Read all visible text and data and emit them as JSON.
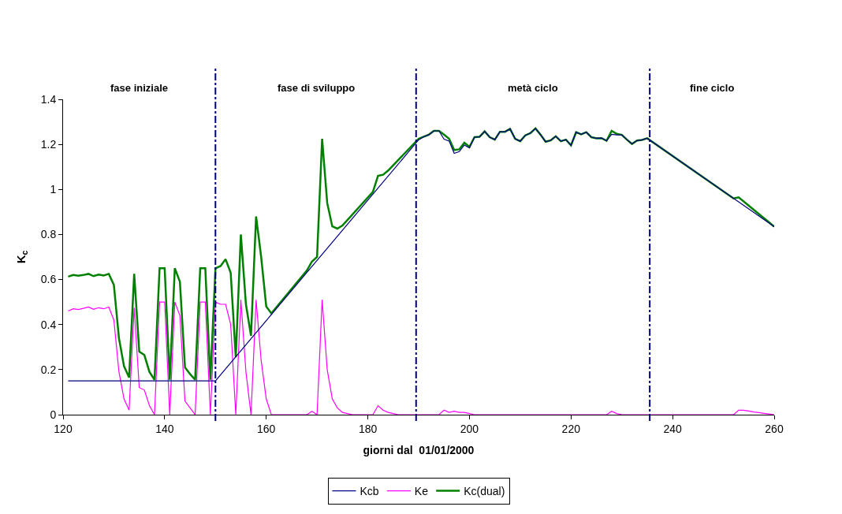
{
  "chart_data": {
    "type": "line",
    "xlabel": "giorni dal  01/01/2000",
    "ylabel": "K$_{c}$",
    "xlim": [
      120,
      260
    ],
    "xticks": [
      120,
      140,
      160,
      180,
      200,
      220,
      240,
      260
    ],
    "ylim": [
      0,
      1.4
    ],
    "yticks": [
      0,
      0.2,
      0.4,
      0.6,
      0.8,
      1,
      1.2,
      1.4
    ],
    "legend": "bottom",
    "marker": "none",
    "line_style": "solid",
    "annotations": [
      "fase iniziale",
      "fase di sviluppo",
      "metà ciclo",
      "fine ciclo"
    ],
    "ref_lines": [
      {
        "axis": "x",
        "value": 150,
        "color": "#000080",
        "line_style": "dashdot"
      },
      {
        "axis": "x",
        "value": 189.5,
        "color": "#000080",
        "line_style": "dashdot"
      },
      {
        "axis": "x",
        "value": 235.5,
        "color": "#000080",
        "line_style": "dashdot"
      }
    ],
    "series": [
      {
        "name": "Kcb",
        "color": "#000080",
        "x": [
          121,
          150,
          190,
          191,
          192,
          193,
          194,
          195,
          196,
          197,
          198,
          199,
          200,
          201,
          202,
          203,
          204,
          205,
          206,
          207,
          208,
          209,
          210,
          211,
          212,
          213,
          214,
          215,
          216,
          217,
          218,
          219,
          220,
          221,
          222,
          223,
          224,
          225,
          226,
          227,
          228,
          229,
          230,
          231,
          232,
          233,
          234,
          235,
          260
        ],
        "values": [
          0.15,
          0.15,
          1.22,
          1.234,
          1.243,
          1.26,
          1.26,
          1.223,
          1.215,
          1.16,
          1.168,
          1.197,
          1.184,
          1.232,
          1.234,
          1.258,
          1.232,
          1.221,
          1.256,
          1.256,
          1.269,
          1.225,
          1.214,
          1.24,
          1.25,
          1.271,
          1.243,
          1.212,
          1.218,
          1.236,
          1.214,
          1.221,
          1.196,
          1.254,
          1.245,
          1.254,
          1.232,
          1.227,
          1.228,
          1.216,
          1.245,
          1.242,
          1.242,
          1.221,
          1.202,
          1.217,
          1.22,
          1.227,
          0.835
        ]
      },
      {
        "name": "Ke",
        "color": "#ff00ff",
        "x": [
          121,
          122,
          123,
          124,
          125,
          126,
          127,
          128,
          129,
          130,
          131,
          132,
          133,
          134,
          135,
          136,
          137,
          138,
          139,
          140,
          141,
          142,
          143,
          144,
          145,
          146,
          147,
          148,
          149,
          150,
          151,
          152,
          153,
          154,
          155,
          156,
          157,
          158,
          159,
          160,
          161,
          168,
          169,
          170,
          171,
          172,
          173,
          174,
          175,
          176,
          177,
          181,
          182,
          183,
          184,
          185,
          186,
          194,
          195,
          196,
          197,
          198,
          199,
          200,
          201,
          227,
          228,
          229,
          230,
          252,
          253,
          254,
          255,
          256,
          257,
          258,
          259,
          260
        ],
        "values": [
          0.46,
          0.47,
          0.467,
          0.472,
          0.478,
          0.468,
          0.475,
          0.47,
          0.478,
          0.42,
          0.19,
          0.07,
          0.02,
          0.475,
          0.12,
          0.11,
          0.04,
          0,
          0.5,
          0.5,
          0,
          0.5,
          0.44,
          0.06,
          0.03,
          0,
          0.5,
          0.5,
          0,
          0.5,
          0.49,
          0.49,
          0.4,
          0,
          0.51,
          0.19,
          0,
          0.51,
          0.24,
          0.07,
          0,
          0,
          0.015,
          0,
          0.51,
          0.2,
          0.07,
          0.03,
          0.01,
          0.005,
          0,
          0,
          0.04,
          0.02,
          0.01,
          0.005,
          0,
          0,
          0.02,
          0.01,
          0.015,
          0.01,
          0.01,
          0.005,
          0,
          0,
          0.015,
          0.005,
          0,
          0,
          0.02,
          0.02,
          0.016,
          0.012,
          0.009,
          0.006,
          0.003,
          0
        ]
      },
      {
        "name": "Kc(dual)",
        "color": "#008000",
        "x": [
          121,
          122,
          123,
          124,
          125,
          126,
          127,
          128,
          129,
          130,
          131,
          132,
          133,
          134,
          135,
          136,
          137,
          138,
          139,
          140,
          141,
          142,
          143,
          144,
          145,
          146,
          147,
          148,
          149,
          150,
          151,
          152,
          153,
          154,
          155,
          156,
          157,
          158,
          159,
          160,
          161,
          168,
          169,
          170,
          171,
          172,
          173,
          174,
          175,
          181,
          182,
          183,
          184,
          190,
          191,
          192,
          193,
          194,
          195,
          196,
          197,
          198,
          199,
          200,
          201,
          202,
          203,
          204,
          205,
          206,
          207,
          208,
          209,
          210,
          211,
          212,
          213,
          214,
          215,
          216,
          217,
          218,
          219,
          220,
          221,
          222,
          223,
          224,
          225,
          226,
          227,
          228,
          229,
          230,
          231,
          232,
          233,
          234,
          235,
          252,
          253,
          260
        ],
        "values": [
          0.613,
          0.62,
          0.617,
          0.62,
          0.625,
          0.615,
          0.622,
          0.618,
          0.625,
          0.576,
          0.34,
          0.215,
          0.165,
          0.625,
          0.28,
          0.265,
          0.19,
          0.155,
          0.65,
          0.65,
          0.155,
          0.65,
          0.59,
          0.21,
          0.18,
          0.155,
          0.65,
          0.65,
          0.155,
          0.65,
          0.66,
          0.69,
          0.63,
          0.255,
          0.8,
          0.49,
          0.35,
          0.88,
          0.7,
          0.48,
          0.45,
          0.64,
          0.68,
          0.7,
          1.225,
          0.94,
          0.836,
          0.826,
          0.84,
          0.989,
          1.06,
          1.065,
          1.084,
          1.225,
          1.234,
          1.243,
          1.26,
          1.26,
          1.243,
          1.225,
          1.175,
          1.178,
          1.207,
          1.189,
          1.232,
          1.234,
          1.258,
          1.232,
          1.221,
          1.256,
          1.256,
          1.269,
          1.225,
          1.214,
          1.24,
          1.25,
          1.271,
          1.243,
          1.212,
          1.218,
          1.236,
          1.214,
          1.221,
          1.196,
          1.254,
          1.245,
          1.254,
          1.232,
          1.227,
          1.228,
          1.216,
          1.26,
          1.247,
          1.242,
          1.221,
          1.202,
          1.217,
          1.22,
          1.227,
          0.96,
          0.965,
          0.835
        ]
      }
    ]
  }
}
